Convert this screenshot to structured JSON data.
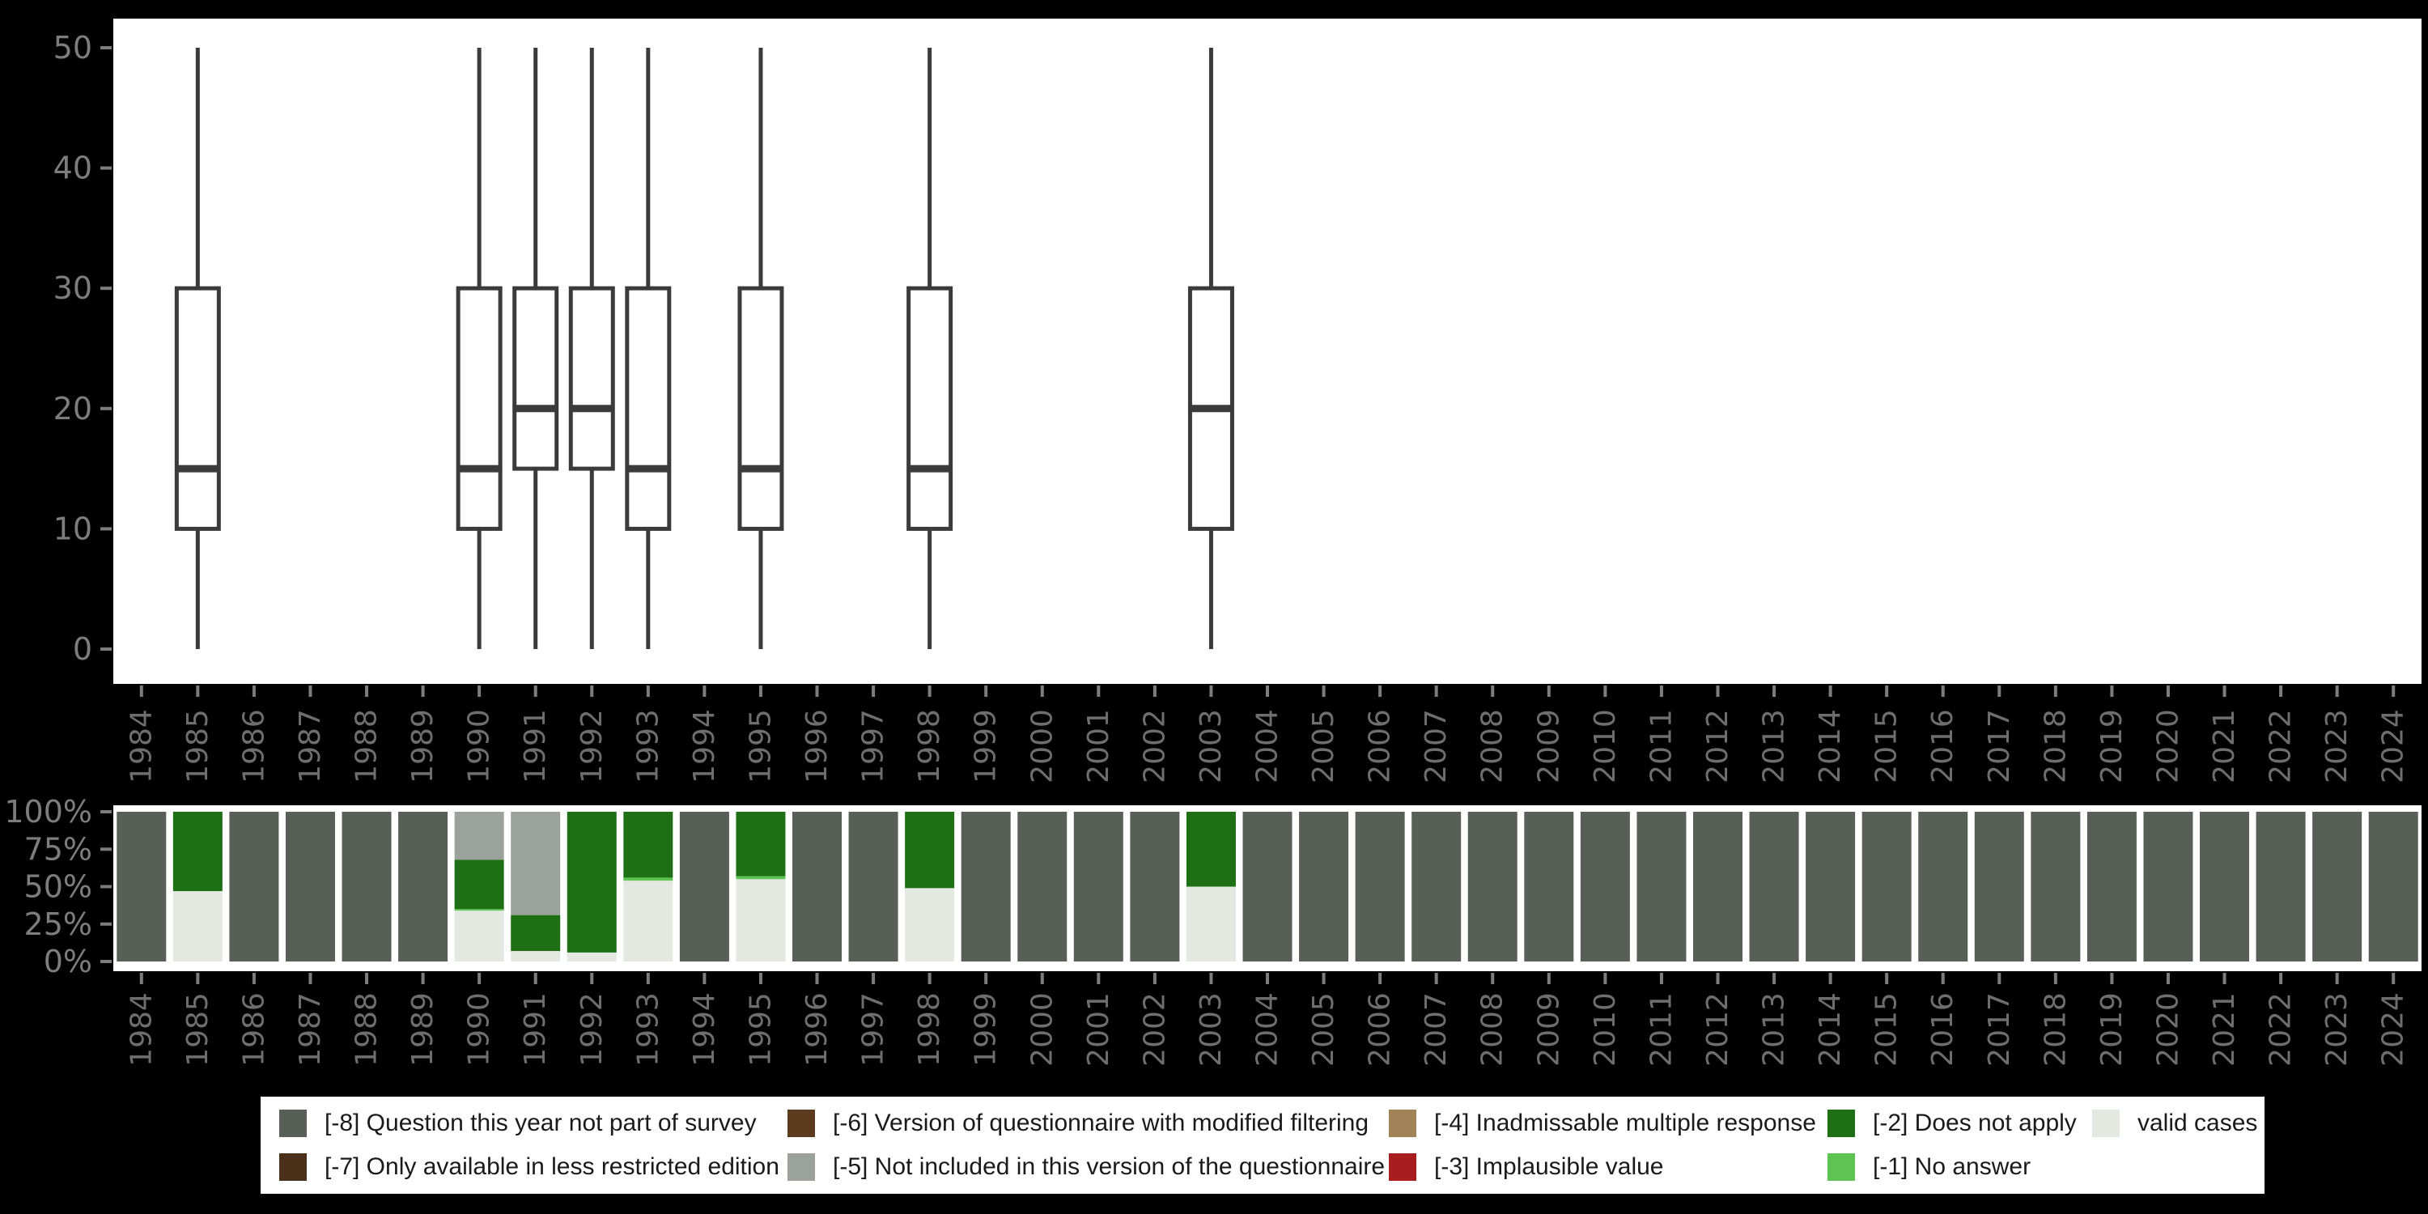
{
  "colors": {
    "background": "#000000",
    "panel": "#ffffff",
    "box_stroke": "#3b3b3b",
    "axis_text": "#7d7d7d",
    "year_text": "#6e6e6e",
    "legend_text": "#1a1a1a"
  },
  "palette": {
    "-8": "#575f57",
    "-7": "#4a3018",
    "-6": "#5c3a1e",
    "-5": "#9ba19b",
    "-4": "#a28357",
    "-3": "#a81d1d",
    "-2": "#1f6f15",
    "-1": "#5dc452",
    "valid": "#e3e8e0"
  },
  "years": [
    "1984",
    "1985",
    "1986",
    "1987",
    "1988",
    "1989",
    "1990",
    "1991",
    "1992",
    "1993",
    "1994",
    "1995",
    "1996",
    "1997",
    "1998",
    "1999",
    "2000",
    "2001",
    "2002",
    "2003",
    "2004",
    "2005",
    "2006",
    "2007",
    "2008",
    "2009",
    "2010",
    "2011",
    "2012",
    "2013",
    "2014",
    "2015",
    "2016",
    "2017",
    "2018",
    "2019",
    "2020",
    "2021",
    "2022",
    "2023",
    "2024"
  ],
  "legend": {
    "items": [
      {
        "code": "-8",
        "label": "[-8] Question this year not part of survey",
        "color": "#575f57"
      },
      {
        "code": "-6",
        "label": "[-6] Version of questionnaire with modified filtering",
        "color": "#5c3a1e"
      },
      {
        "code": "-4",
        "label": "[-4] Inadmissable multiple response",
        "color": "#a28357"
      },
      {
        "code": "-2",
        "label": "[-2] Does not apply",
        "color": "#1f6f15"
      },
      {
        "code": "valid",
        "label": "valid cases",
        "color": "#e3e8e0"
      },
      {
        "code": "-7",
        "label": "[-7] Only available in less restricted edition",
        "color": "#4a3018"
      },
      {
        "code": "-5",
        "label": "[-5] Not included in this version of the questionnaire",
        "color": "#9ba19b"
      },
      {
        "code": "-3",
        "label": "[-3] Implausible value",
        "color": "#a81d1d"
      },
      {
        "code": "-1",
        "label": "[-1] No answer",
        "color": "#5dc452"
      }
    ]
  },
  "chart_data": [
    {
      "type": "boxplot",
      "title": "",
      "xlabel": "",
      "ylabel": "",
      "categories": [
        "1984",
        "1985",
        "1986",
        "1987",
        "1988",
        "1989",
        "1990",
        "1991",
        "1992",
        "1993",
        "1994",
        "1995",
        "1996",
        "1997",
        "1998",
        "1999",
        "2000",
        "2001",
        "2002",
        "2003",
        "2004",
        "2005",
        "2006",
        "2007",
        "2008",
        "2009",
        "2010",
        "2011",
        "2012",
        "2013",
        "2014",
        "2015",
        "2016",
        "2017",
        "2018",
        "2019",
        "2020",
        "2021",
        "2022",
        "2023",
        "2024"
      ],
      "ylim": [
        0,
        50
      ],
      "yticks": [
        0,
        10,
        20,
        30,
        40,
        50
      ],
      "grid": false,
      "boxes": [
        {
          "year": "1985",
          "whisker_low": 0,
          "q1": 10,
          "median": 15,
          "q3": 30,
          "whisker_high": 50
        },
        {
          "year": "1990",
          "whisker_low": 0,
          "q1": 10,
          "median": 15,
          "q3": 30,
          "whisker_high": 50
        },
        {
          "year": "1991",
          "whisker_low": 0,
          "q1": 15,
          "median": 20,
          "q3": 30,
          "whisker_high": 50
        },
        {
          "year": "1992",
          "whisker_low": 0,
          "q1": 15,
          "median": 20,
          "q3": 30,
          "whisker_high": 50
        },
        {
          "year": "1993",
          "whisker_low": 0,
          "q1": 10,
          "median": 15,
          "q3": 30,
          "whisker_high": 50
        },
        {
          "year": "1995",
          "whisker_low": 0,
          "q1": 10,
          "median": 15,
          "q3": 30,
          "whisker_high": 50
        },
        {
          "year": "1998",
          "whisker_low": 0,
          "q1": 10,
          "median": 15,
          "q3": 30,
          "whisker_high": 50
        },
        {
          "year": "2003",
          "whisker_low": 0,
          "q1": 10,
          "median": 20,
          "q3": 30,
          "whisker_high": 50
        }
      ]
    },
    {
      "type": "bar",
      "stacked": true,
      "percent": true,
      "title": "",
      "xlabel": "",
      "ylabel": "",
      "categories": [
        "1984",
        "1985",
        "1986",
        "1987",
        "1988",
        "1989",
        "1990",
        "1991",
        "1992",
        "1993",
        "1994",
        "1995",
        "1996",
        "1997",
        "1998",
        "1999",
        "2000",
        "2001",
        "2002",
        "2003",
        "2004",
        "2005",
        "2006",
        "2007",
        "2008",
        "2009",
        "2010",
        "2011",
        "2012",
        "2013",
        "2014",
        "2015",
        "2016",
        "2017",
        "2018",
        "2019",
        "2020",
        "2021",
        "2022",
        "2023",
        "2024"
      ],
      "ylim": [
        0,
        100
      ],
      "ytick_labels": [
        "0%",
        "25%",
        "50%",
        "75%",
        "100%"
      ],
      "yticks": [
        0,
        25,
        50,
        75,
        100
      ],
      "grid": false,
      "default_segments": [
        [
          "-8",
          100
        ]
      ],
      "bars": {
        "1985": [
          [
            "valid",
            47
          ],
          [
            "-2",
            53
          ]
        ],
        "1990": [
          [
            "valid",
            34
          ],
          [
            "-1",
            1
          ],
          [
            "-2",
            33
          ],
          [
            "-5",
            32
          ]
        ],
        "1991": [
          [
            "valid",
            7
          ],
          [
            "-2",
            24
          ],
          [
            "-5",
            69
          ]
        ],
        "1992": [
          [
            "valid",
            6
          ],
          [
            "-2",
            94
          ]
        ],
        "1993": [
          [
            "valid",
            54
          ],
          [
            "-1",
            2
          ],
          [
            "-2",
            44
          ]
        ],
        "1995": [
          [
            "valid",
            55
          ],
          [
            "-1",
            2
          ],
          [
            "-2",
            43
          ]
        ],
        "1998": [
          [
            "valid",
            49
          ],
          [
            "-2",
            51
          ]
        ],
        "2003": [
          [
            "valid",
            50
          ],
          [
            "-2",
            50
          ]
        ]
      }
    }
  ]
}
